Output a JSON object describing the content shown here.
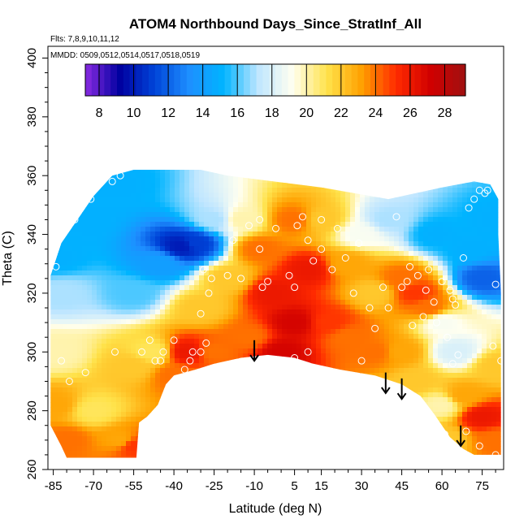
{
  "chart_data": {
    "type": "heatmap",
    "title": "ATOM4 Northbound Days_Since_StratInf_All",
    "subtitle": "Flts: 7,8,9,10,11,12",
    "annotation": "MMDD: 0509,0512,0514,0517,0518,0519",
    "xlabel": "Latitude (deg N)",
    "ylabel": "Theta (C)",
    "xlim": [
      -87,
      83
    ],
    "ylim": [
      260,
      404
    ],
    "x_ticks": [
      -85,
      -70,
      -55,
      -40,
      -25,
      -10,
      5,
      15,
      30,
      45,
      60,
      75
    ],
    "x_tick_labels": [
      "-85",
      "-70",
      "-55",
      "-40",
      "-25",
      "-10",
      "5",
      "15",
      "30",
      "45",
      "60",
      "75"
    ],
    "y_ticks": [
      260,
      280,
      300,
      320,
      340,
      360,
      380,
      400
    ],
    "y_tick_labels": [
      "260",
      "280",
      "300",
      "320",
      "340",
      "360",
      "380",
      "400"
    ],
    "grid": false,
    "legend": "colorbar top-left inside plot",
    "colorbar": {
      "range": [
        7.2,
        29.2
      ],
      "ticks": [
        8,
        10,
        12,
        14,
        16,
        18,
        20,
        22,
        24,
        26,
        28
      ],
      "tick_labels": [
        "8",
        "10",
        "12",
        "14",
        "16",
        "18",
        "20",
        "22",
        "24",
        "26",
        "28"
      ],
      "colors": [
        "#8a2be2",
        "#0000a0",
        "#0044d8",
        "#1e8fff",
        "#00b4ff",
        "#bfe6ff",
        "#fffff0",
        "#ffe24a",
        "#ffa000",
        "#ff2a00",
        "#d00000",
        "#a01010"
      ]
    },
    "field_samples": [
      {
        "lat": -84,
        "theta": 332,
        "value": 15
      },
      {
        "lat": -75,
        "theta": 345,
        "value": 15
      },
      {
        "lat": -62,
        "theta": 357,
        "value": 15
      },
      {
        "lat": -82,
        "theta": 320,
        "value": 17
      },
      {
        "lat": -84,
        "theta": 300,
        "value": 20
      },
      {
        "lat": -84,
        "theta": 282,
        "value": 23
      },
      {
        "lat": -80,
        "theta": 270,
        "value": 24
      },
      {
        "lat": -70,
        "theta": 280,
        "value": 21
      },
      {
        "lat": -60,
        "theta": 270,
        "value": 23
      },
      {
        "lat": -55,
        "theta": 268,
        "value": 25
      },
      {
        "lat": -55,
        "theta": 295,
        "value": 22
      },
      {
        "lat": -48,
        "theta": 300,
        "value": 21
      },
      {
        "lat": -40,
        "theta": 292,
        "value": 24
      },
      {
        "lat": -35,
        "theta": 300,
        "value": 26
      },
      {
        "lat": -25,
        "theta": 300,
        "value": 24
      },
      {
        "lat": -30,
        "theta": 315,
        "value": 22
      },
      {
        "lat": -55,
        "theta": 320,
        "value": 16
      },
      {
        "lat": -45,
        "theta": 330,
        "value": 14
      },
      {
        "lat": -37,
        "theta": 336,
        "value": 10
      },
      {
        "lat": -32,
        "theta": 337,
        "value": 11
      },
      {
        "lat": -25,
        "theta": 345,
        "value": 17
      },
      {
        "lat": -20,
        "theta": 325,
        "value": 22
      },
      {
        "lat": -15,
        "theta": 345,
        "value": 20
      },
      {
        "lat": -8,
        "theta": 335,
        "value": 24
      },
      {
        "lat": -3,
        "theta": 320,
        "value": 26
      },
      {
        "lat": 5,
        "theta": 310,
        "value": 27
      },
      {
        "lat": 10,
        "theta": 328,
        "value": 26
      },
      {
        "lat": 5,
        "theta": 345,
        "value": 24
      },
      {
        "lat": 15,
        "theta": 345,
        "value": 22
      },
      {
        "lat": -12,
        "theta": 305,
        "value": 24
      },
      {
        "lat": 0,
        "theta": 300,
        "value": 27
      },
      {
        "lat": 18,
        "theta": 310,
        "value": 25
      },
      {
        "lat": 25,
        "theta": 330,
        "value": 23
      },
      {
        "lat": 25,
        "theta": 305,
        "value": 24
      },
      {
        "lat": 30,
        "theta": 340,
        "value": 19
      },
      {
        "lat": 35,
        "theta": 320,
        "value": 22
      },
      {
        "lat": 35,
        "theta": 300,
        "value": 24
      },
      {
        "lat": 45,
        "theta": 325,
        "value": 24
      },
      {
        "lat": 50,
        "theta": 320,
        "value": 25
      },
      {
        "lat": 45,
        "theta": 300,
        "value": 23
      },
      {
        "lat": 50,
        "theta": 290,
        "value": 22
      },
      {
        "lat": 55,
        "theta": 315,
        "value": 24
      },
      {
        "lat": 60,
        "theta": 310,
        "value": 19
      },
      {
        "lat": 58,
        "theta": 340,
        "value": 15
      },
      {
        "lat": 70,
        "theta": 335,
        "value": 15
      },
      {
        "lat": 75,
        "theta": 325,
        "value": 12
      },
      {
        "lat": 80,
        "theta": 345,
        "value": 15
      },
      {
        "lat": 65,
        "theta": 300,
        "value": 18
      },
      {
        "lat": 68,
        "theta": 285,
        "value": 23
      },
      {
        "lat": 75,
        "theta": 278,
        "value": 26
      },
      {
        "lat": 80,
        "theta": 270,
        "value": 24
      },
      {
        "lat": 80,
        "theta": 295,
        "value": 22
      },
      {
        "lat": 62,
        "theta": 270,
        "value": 22
      },
      {
        "lat": 60,
        "theta": 282,
        "value": 20
      },
      {
        "lat": 40,
        "theta": 345,
        "value": 17
      }
    ],
    "observations": [
      {
        "lat": -84,
        "theta": 329
      },
      {
        "lat": -80,
        "theta": 342
      },
      {
        "lat": -77,
        "theta": 345
      },
      {
        "lat": -71,
        "theta": 352
      },
      {
        "lat": -63,
        "theta": 358
      },
      {
        "lat": -60,
        "theta": 360
      },
      {
        "lat": -82,
        "theta": 297
      },
      {
        "lat": -79,
        "theta": 290
      },
      {
        "lat": -73,
        "theta": 293
      },
      {
        "lat": -62,
        "theta": 300
      },
      {
        "lat": -52,
        "theta": 300
      },
      {
        "lat": -49,
        "theta": 304
      },
      {
        "lat": -47,
        "theta": 297
      },
      {
        "lat": -45,
        "theta": 297
      },
      {
        "lat": -44,
        "theta": 300
      },
      {
        "lat": -40,
        "theta": 304
      },
      {
        "lat": -39,
        "theta": 291
      },
      {
        "lat": -36,
        "theta": 294
      },
      {
        "lat": -34,
        "theta": 297
      },
      {
        "lat": -33,
        "theta": 300
      },
      {
        "lat": -30,
        "theta": 300
      },
      {
        "lat": -28,
        "theta": 303
      },
      {
        "lat": -30,
        "theta": 313
      },
      {
        "lat": -27,
        "theta": 320
      },
      {
        "lat": -26,
        "theta": 325
      },
      {
        "lat": -29,
        "theta": 328
      },
      {
        "lat": -20,
        "theta": 326
      },
      {
        "lat": -15,
        "theta": 325
      },
      {
        "lat": -18,
        "theta": 338
      },
      {
        "lat": -12,
        "theta": 343
      },
      {
        "lat": -8,
        "theta": 345
      },
      {
        "lat": -8,
        "theta": 335
      },
      {
        "lat": -7,
        "theta": 322
      },
      {
        "lat": -5,
        "theta": 324
      },
      {
        "lat": -2,
        "theta": 342
      },
      {
        "lat": 3,
        "theta": 326
      },
      {
        "lat": 5,
        "theta": 322
      },
      {
        "lat": 6,
        "theta": 343
      },
      {
        "lat": 8,
        "theta": 346
      },
      {
        "lat": 10,
        "theta": 338
      },
      {
        "lat": 12,
        "theta": 331
      },
      {
        "lat": 15,
        "theta": 335
      },
      {
        "lat": 15,
        "theta": 345
      },
      {
        "lat": 19,
        "theta": 328
      },
      {
        "lat": 21,
        "theta": 342
      },
      {
        "lat": 24,
        "theta": 332
      },
      {
        "lat": 27,
        "theta": 320
      },
      {
        "lat": 29,
        "theta": 337
      },
      {
        "lat": 33,
        "theta": 315
      },
      {
        "lat": 35,
        "theta": 308
      },
      {
        "lat": 38,
        "theta": 322
      },
      {
        "lat": 40,
        "theta": 315
      },
      {
        "lat": 43,
        "theta": 346
      },
      {
        "lat": 45,
        "theta": 322
      },
      {
        "lat": 47,
        "theta": 324
      },
      {
        "lat": 48,
        "theta": 329
      },
      {
        "lat": 49,
        "theta": 309
      },
      {
        "lat": 51,
        "theta": 326
      },
      {
        "lat": 53,
        "theta": 312
      },
      {
        "lat": 54,
        "theta": 321
      },
      {
        "lat": 55,
        "theta": 328
      },
      {
        "lat": 57,
        "theta": 317
      },
      {
        "lat": 58,
        "theta": 310
      },
      {
        "lat": 60,
        "theta": 324
      },
      {
        "lat": 62,
        "theta": 305
      },
      {
        "lat": 63,
        "theta": 321
      },
      {
        "lat": 64,
        "theta": 318
      },
      {
        "lat": 65,
        "theta": 316
      },
      {
        "lat": 68,
        "theta": 332
      },
      {
        "lat": 70,
        "theta": 349
      },
      {
        "lat": 72,
        "theta": 352
      },
      {
        "lat": 74,
        "theta": 355
      },
      {
        "lat": 76,
        "theta": 354
      },
      {
        "lat": 77,
        "theta": 355
      },
      {
        "lat": 80,
        "theta": 323
      },
      {
        "lat": 79,
        "theta": 302
      },
      {
        "lat": 82,
        "theta": 297
      },
      {
        "lat": 66,
        "theta": 299
      },
      {
        "lat": 64,
        "theta": 296
      },
      {
        "lat": 69,
        "theta": 273
      },
      {
        "lat": 74,
        "theta": 268
      },
      {
        "lat": 80,
        "theta": 265
      },
      {
        "lat": 61,
        "theta": 272
      },
      {
        "lat": 10,
        "theta": 300
      },
      {
        "lat": 5,
        "theta": 298
      },
      {
        "lat": 30,
        "theta": 297
      }
    ],
    "arrows": [
      {
        "lat": -10,
        "theta_top": 304,
        "theta_tip": 297
      },
      {
        "lat": 39,
        "theta_top": 293,
        "theta_tip": 286
      },
      {
        "lat": 45,
        "theta_top": 291,
        "theta_tip": 284
      },
      {
        "lat": 67,
        "theta_top": 275,
        "theta_tip": 268
      }
    ],
    "coverage_top": [
      {
        "lat": -86,
        "theta": 326
      },
      {
        "lat": -82,
        "theta": 337
      },
      {
        "lat": -76,
        "theta": 345
      },
      {
        "lat": -70,
        "theta": 353
      },
      {
        "lat": -63,
        "theta": 360
      },
      {
        "lat": -55,
        "theta": 362
      },
      {
        "lat": -30,
        "theta": 362
      },
      {
        "lat": -20,
        "theta": 360
      },
      {
        "lat": 15,
        "theta": 356
      },
      {
        "lat": 40,
        "theta": 352
      },
      {
        "lat": 60,
        "theta": 356
      },
      {
        "lat": 72,
        "theta": 358
      },
      {
        "lat": 78,
        "theta": 357
      },
      {
        "lat": 81,
        "theta": 352
      },
      {
        "lat": 81,
        "theta": 340
      }
    ],
    "coverage_right": [
      {
        "lat": 81,
        "theta": 340
      },
      {
        "lat": 82,
        "theta": 320
      },
      {
        "lat": 82,
        "theta": 295
      },
      {
        "lat": 82,
        "theta": 265
      }
    ],
    "coverage_bottom": [
      {
        "lat": 82,
        "theta": 265
      },
      {
        "lat": 72,
        "theta": 265
      },
      {
        "lat": 68,
        "theta": 267
      },
      {
        "lat": 63,
        "theta": 271
      },
      {
        "lat": 57,
        "theta": 279
      },
      {
        "lat": 52,
        "theta": 285
      },
      {
        "lat": 45,
        "theta": 289
      },
      {
        "lat": 35,
        "theta": 292
      },
      {
        "lat": 22,
        "theta": 294
      },
      {
        "lat": 12,
        "theta": 296
      },
      {
        "lat": 5,
        "theta": 298
      },
      {
        "lat": -5,
        "theta": 299
      },
      {
        "lat": -15,
        "theta": 298
      },
      {
        "lat": -25,
        "theta": 296
      },
      {
        "lat": -32,
        "theta": 294
      },
      {
        "lat": -40,
        "theta": 292
      },
      {
        "lat": -43,
        "theta": 289
      },
      {
        "lat": -46,
        "theta": 282
      },
      {
        "lat": -50,
        "theta": 278
      },
      {
        "lat": -53,
        "theta": 276
      },
      {
        "lat": -54,
        "theta": 264
      },
      {
        "lat": -80,
        "theta": 264
      },
      {
        "lat": -82,
        "theta": 268
      },
      {
        "lat": -86,
        "theta": 275
      },
      {
        "lat": -86,
        "theta": 300
      }
    ]
  }
}
